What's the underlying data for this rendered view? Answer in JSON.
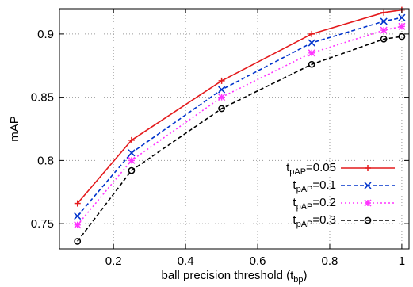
{
  "chart_data": {
    "type": "line",
    "xlabel": "ball precision threshold (t",
    "xlabel_sub": "bp",
    "xlabel_suffix": ")",
    "ylabel": "mAP",
    "xlim": [
      0.05,
      1.02
    ],
    "ylim": [
      0.73,
      0.92
    ],
    "xticks": [
      0.2,
      0.4,
      0.6,
      0.8,
      1
    ],
    "xtick_labels": [
      "0.2",
      "0.4",
      "0.6",
      "0.8",
      "1"
    ],
    "yticks": [
      0.75,
      0.8,
      0.85,
      0.9
    ],
    "ytick_labels": [
      "0.75",
      "0.8",
      "0.85",
      "0.9"
    ],
    "grid": true,
    "legend_position": "bottom-right",
    "x": [
      0.1,
      0.25,
      0.5,
      0.75,
      0.95,
      1.0
    ],
    "series": [
      {
        "name_main": "t",
        "name_sub": "pAP",
        "name_value": "=0.05",
        "color": "#e41a1c",
        "dash": "solid",
        "marker": "plus",
        "values": [
          0.766,
          0.816,
          0.863,
          0.9,
          0.917,
          0.919
        ]
      },
      {
        "name_main": "t",
        "name_sub": "pAP",
        "name_value": "=0.1",
        "color": "#0033cc",
        "dash": "dashed",
        "marker": "cross",
        "values": [
          0.756,
          0.806,
          0.856,
          0.893,
          0.91,
          0.913
        ]
      },
      {
        "name_main": "t",
        "name_sub": "pAP",
        "name_value": "=0.2",
        "color": "#ff33ff",
        "dash": "dotted",
        "marker": "star",
        "values": [
          0.749,
          0.8,
          0.85,
          0.885,
          0.903,
          0.906
        ]
      },
      {
        "name_main": "t",
        "name_sub": "pAP",
        "name_value": "=0.3",
        "color": "#000000",
        "dash": "dashed",
        "marker": "circle",
        "values": [
          0.736,
          0.792,
          0.841,
          0.876,
          0.896,
          0.898
        ]
      }
    ]
  }
}
